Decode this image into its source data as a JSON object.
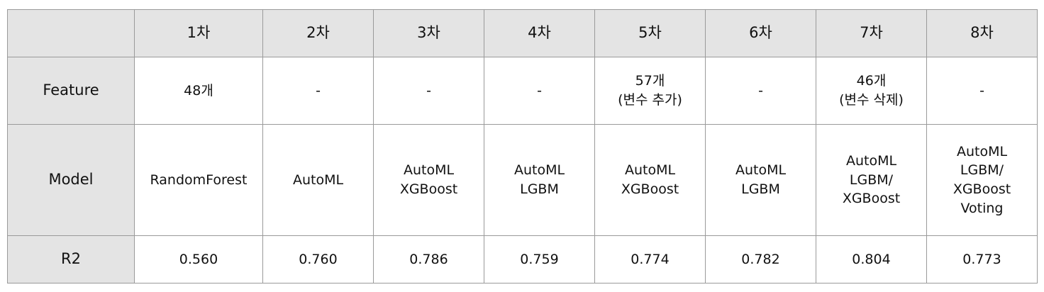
{
  "table": {
    "corner": "",
    "columns": [
      "1차",
      "2차",
      "3차",
      "4차",
      "5차",
      "6차",
      "7차",
      "8차"
    ],
    "feature": {
      "label": "Feature",
      "cells": [
        [
          "48개"
        ],
        [
          "-"
        ],
        [
          "-"
        ],
        [
          "-"
        ],
        [
          "57개",
          "(변수 추가)"
        ],
        [
          "-"
        ],
        [
          "46개",
          "(변수 삭제)"
        ],
        [
          "-"
        ]
      ]
    },
    "model": {
      "label": "Model",
      "cells": [
        [
          "RandomForest"
        ],
        [
          "AutoML"
        ],
        [
          "AutoML",
          "XGBoost"
        ],
        [
          "AutoML",
          "LGBM"
        ],
        [
          "AutoML",
          "XGBoost"
        ],
        [
          "AutoML",
          "LGBM"
        ],
        [
          "AutoML",
          "LGBM/",
          "XGBoost"
        ],
        [
          "AutoML",
          "LGBM/",
          "XGBoost",
          "Voting"
        ]
      ]
    },
    "r2": {
      "label": "R2",
      "cells": [
        "0.560",
        "0.760",
        "0.786",
        "0.759",
        "0.774",
        "0.782",
        "0.804",
        "0.773"
      ]
    }
  }
}
